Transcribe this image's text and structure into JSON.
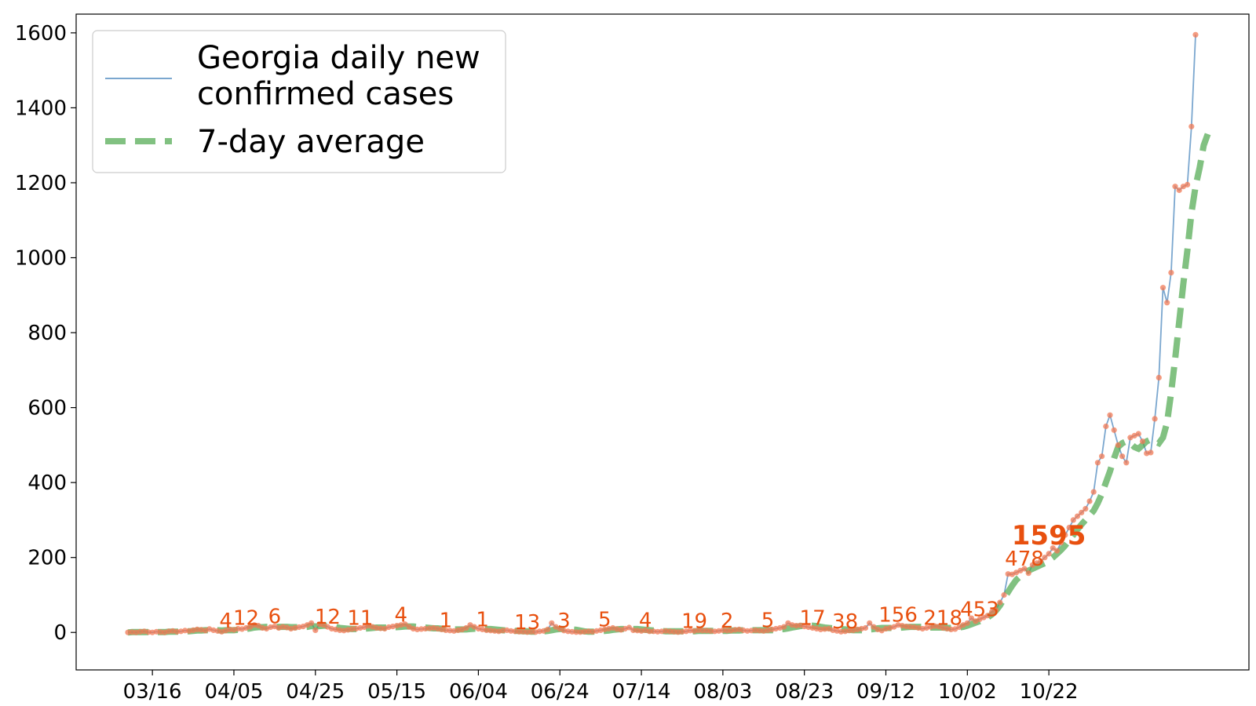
{
  "chart_data": {
    "type": "line",
    "title": "",
    "xlabel": "",
    "ylabel": "",
    "ylim": [
      -100,
      1650
    ],
    "y_ticks": [
      0,
      200,
      400,
      600,
      800,
      1000,
      1200,
      1400,
      1600
    ],
    "x_ticks": [
      "03/16",
      "04/05",
      "04/25",
      "05/15",
      "06/04",
      "06/24",
      "07/14",
      "08/03",
      "08/23",
      "09/12",
      "10/02",
      "10/22"
    ],
    "grid": false,
    "legend": {
      "placement": "top-left",
      "entries": [
        "Georgia daily new\nconfirmed cases",
        "7-day average"
      ]
    },
    "colors": {
      "daily": "#7ba7cf",
      "average": "#4ca64c",
      "points": "#f07a55",
      "annotation": "#e8500f"
    },
    "start_date": "03/10",
    "end_date": "10/22",
    "series": [
      {
        "name": "Georgia daily new confirmed cases",
        "values": [
          0,
          1,
          0,
          2,
          3,
          1,
          0,
          2,
          1,
          0,
          3,
          4,
          2,
          3,
          5,
          4,
          6,
          8,
          7,
          5,
          9,
          6,
          4,
          2,
          5,
          8,
          7,
          10,
          9,
          12,
          15,
          20,
          18,
          12,
          10,
          14,
          16,
          12,
          15,
          13,
          10,
          12,
          14,
          16,
          20,
          25,
          6,
          22,
          20,
          15,
          10,
          8,
          6,
          5,
          7,
          9,
          10,
          12,
          14,
          18,
          15,
          12,
          11,
          10,
          14,
          16,
          18,
          20,
          22,
          15,
          10,
          8,
          9,
          10,
          11,
          12,
          10,
          8,
          6,
          5,
          4,
          6,
          8,
          12,
          20,
          15,
          10,
          8,
          6,
          5,
          4,
          3,
          5,
          6,
          4,
          3,
          2,
          2,
          1,
          2,
          1,
          3,
          4,
          8,
          25,
          15,
          10,
          5,
          3,
          2,
          1,
          1,
          2,
          3,
          2,
          4,
          6,
          8,
          10,
          12,
          9,
          7,
          10,
          13,
          6,
          5,
          4,
          6,
          3,
          3,
          2,
          3,
          4,
          3,
          2,
          1,
          2,
          3,
          5,
          4,
          6,
          5,
          5,
          4,
          3,
          4,
          6,
          5,
          5,
          7,
          8,
          6,
          4,
          5,
          6,
          5,
          4,
          6,
          8,
          10,
          12,
          15,
          25,
          20,
          18,
          19,
          16,
          14,
          12,
          10,
          8,
          9,
          10,
          6,
          4,
          2,
          3,
          5,
          6,
          8,
          10,
          12,
          25,
          15,
          8,
          5,
          10,
          12,
          15,
          20,
          18,
          16,
          15,
          14,
          12,
          10,
          12,
          15,
          17,
          16,
          12,
          10,
          8,
          9,
          14,
          20,
          25,
          38,
          30,
          35,
          40,
          45,
          55,
          60,
          80,
          100,
          156,
          155,
          160,
          165,
          170,
          158,
          180,
          185,
          190,
          200,
          210,
          225,
          218,
          240,
          260,
          280,
          300,
          310,
          320,
          330,
          350,
          375,
          453,
          470,
          550,
          580,
          540,
          500,
          470,
          453,
          520,
          525,
          530,
          510,
          478,
          480,
          570,
          680,
          920,
          880,
          960,
          1190,
          1180,
          1190,
          1195,
          1350,
          1595
        ],
        "annotations": [
          {
            "date": "04/03",
            "label": "4"
          },
          {
            "date": "04/08",
            "label": "12"
          },
          {
            "date": "04/15",
            "label": "6"
          },
          {
            "date": "04/28",
            "label": "12"
          },
          {
            "date": "05/06",
            "label": "11"
          },
          {
            "date": "05/16",
            "label": "4"
          },
          {
            "date": "05/27",
            "label": "1"
          },
          {
            "date": "06/05",
            "label": "1"
          },
          {
            "date": "06/16",
            "label": "13"
          },
          {
            "date": "06/25",
            "label": "3"
          },
          {
            "date": "07/05",
            "label": "5"
          },
          {
            "date": "07/15",
            "label": "4"
          },
          {
            "date": "07/27",
            "label": "19"
          },
          {
            "date": "08/04",
            "label": "2"
          },
          {
            "date": "08/14",
            "label": "5"
          },
          {
            "date": "08/25",
            "label": "17"
          },
          {
            "date": "09/02",
            "label": "38"
          },
          {
            "date": "09/15",
            "label": "156"
          },
          {
            "date": "09/26",
            "label": "218"
          },
          {
            "date": "10/05",
            "label": "453"
          },
          {
            "date": "10/16",
            "label": "478"
          },
          {
            "date": "10/22",
            "label": "1595",
            "bold": true
          }
        ]
      },
      {
        "name": "7-day average",
        "values": [
          0,
          1,
          1,
          1,
          1,
          1,
          1,
          1,
          1,
          1,
          2,
          2,
          2,
          2,
          3,
          3,
          4,
          5,
          5,
          6,
          6,
          6,
          6,
          5,
          6,
          6,
          6,
          7,
          8,
          9,
          11,
          13,
          14,
          14,
          15,
          15,
          15,
          15,
          15,
          15,
          14,
          14,
          14,
          14,
          15,
          17,
          16,
          17,
          18,
          18,
          17,
          15,
          12,
          11,
          10,
          9,
          9,
          9,
          10,
          11,
          12,
          13,
          13,
          13,
          13,
          14,
          14,
          15,
          16,
          16,
          16,
          15,
          14,
          13,
          12,
          11,
          11,
          10,
          10,
          9,
          8,
          8,
          8,
          8,
          9,
          10,
          10,
          10,
          9,
          9,
          8,
          7,
          6,
          5,
          5,
          4,
          4,
          3,
          3,
          2,
          2,
          2,
          3,
          4,
          6,
          8,
          9,
          9,
          9,
          8,
          7,
          5,
          3,
          2,
          2,
          3,
          3,
          4,
          5,
          7,
          8,
          9,
          9,
          10,
          9,
          9,
          8,
          7,
          6,
          5,
          4,
          4,
          3,
          3,
          3,
          3,
          3,
          3,
          3,
          3,
          4,
          4,
          4,
          4,
          4,
          4,
          4,
          4,
          5,
          5,
          5,
          6,
          6,
          6,
          6,
          6,
          6,
          6,
          6,
          7,
          8,
          9,
          11,
          13,
          15,
          17,
          18,
          18,
          18,
          17,
          15,
          13,
          12,
          11,
          10,
          9,
          8,
          7,
          6,
          6,
          6,
          7,
          8,
          9,
          11,
          12,
          12,
          12,
          12,
          12,
          13,
          14,
          15,
          15,
          15,
          15,
          14,
          13,
          13,
          13,
          13,
          12,
          12,
          12,
          13,
          15,
          18,
          22,
          26,
          30,
          35,
          40,
          48,
          58,
          72,
          90,
          108,
          125,
          140,
          150,
          160,
          165,
          170,
          175,
          180,
          185,
          192,
          200,
          210,
          220,
          232,
          246,
          260,
          275,
          288,
          300,
          312,
          325,
          345,
          370,
          400,
          430,
          465,
          495,
          505,
          510,
          505,
          495,
          490,
          500,
          510,
          515,
          510,
          505,
          520,
          560,
          640,
          730,
          830,
          930,
          1020,
          1120,
          1190,
          1240,
          1300,
          1330
        ]
      }
    ]
  }
}
